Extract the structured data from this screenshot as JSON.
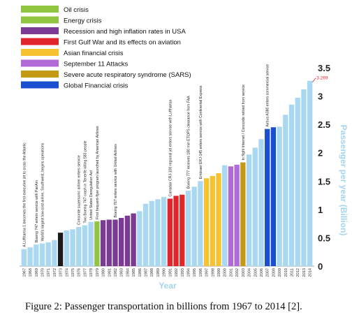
{
  "caption": "Figure 2: Passenger transportation in billions from 1967 to 2014 [2].",
  "chart_data": {
    "type": "bar",
    "xlabel": "Year",
    "ylabel": "Passenger per year (Billion)",
    "ylim": [
      0,
      3.5
    ],
    "yticks": [
      "0",
      "0.5",
      "1",
      "1.5",
      "2",
      "2.5",
      "3",
      "3.5"
    ],
    "grid": false,
    "legend_position": "top-left",
    "default_color": "#a9d8f2",
    "legend": [
      {
        "label": "Oil crisis",
        "color": "#8fc640"
      },
      {
        "label": "Energy crisis",
        "color": "#8fc640"
      },
      {
        "label": "Recession and high inflation rates in USA",
        "color": "#7b3a93"
      },
      {
        "label": "First Gulf War and its effects on aviation",
        "color": "#e0262a"
      },
      {
        "label": "Asian financial crisis",
        "color": "#f7c230"
      },
      {
        "label": "September 11 Attacks",
        "color": "#b36ad9"
      },
      {
        "label": "Severe acute respiratory syndrome (SARS)",
        "color": "#c49a14"
      },
      {
        "label": "Global Financial crisis",
        "color": "#1a4fd0"
      }
    ],
    "categories": [
      "1967",
      "1968",
      "1969",
      "1970",
      "1971",
      "1972",
      "1973",
      "1974",
      "1975",
      "1976",
      "1977",
      "1978",
      "1979",
      "1980",
      "1981",
      "1982",
      "1983",
      "1984",
      "1985",
      "1986",
      "1987",
      "1988",
      "1989",
      "1990",
      "1991",
      "1992",
      "1993",
      "1994",
      "1995",
      "1996",
      "1997",
      "1998",
      "1999",
      "2000",
      "2001",
      "2002",
      "2003",
      "2004",
      "2005",
      "2006",
      "2007",
      "2008",
      "2009",
      "2010",
      "2011",
      "2012",
      "2013",
      "2014"
    ],
    "values": [
      0.3,
      0.33,
      0.38,
      0.4,
      0.42,
      0.46,
      0.59,
      0.63,
      0.65,
      0.69,
      0.72,
      0.78,
      0.79,
      0.81,
      0.82,
      0.82,
      0.85,
      0.89,
      0.93,
      0.97,
      1.1,
      1.15,
      1.18,
      1.22,
      1.19,
      1.24,
      1.26,
      1.33,
      1.4,
      1.5,
      1.55,
      1.59,
      1.64,
      1.78,
      1.76,
      1.79,
      1.83,
      1.97,
      2.09,
      2.24,
      2.42,
      2.45,
      2.46,
      2.67,
      2.85,
      2.97,
      3.12,
      3.27
    ],
    "bar_colors": [
      "#a9d8f2",
      "#a9d8f2",
      "#a9d8f2",
      "#a9d8f2",
      "#a9d8f2",
      "#a9d8f2",
      "#1a1a1a",
      "#a9d8f2",
      "#a9d8f2",
      "#a9d8f2",
      "#a9d8f2",
      "#a9d8f2",
      "#8fc640",
      "#7b3a93",
      "#7b3a93",
      "#7b3a93",
      "#7b3a93",
      "#7b3a93",
      "#7b3a93",
      "#a9d8f2",
      "#a9d8f2",
      "#a9d8f2",
      "#a9d8f2",
      "#a9d8f2",
      "#e0262a",
      "#e0262a",
      "#e0262a",
      "#a9d8f2",
      "#a9d8f2",
      "#a9d8f2",
      "#f7c230",
      "#f7c230",
      "#f7c230",
      "#a9d8f2",
      "#b36ad9",
      "#b36ad9",
      "#c49a14",
      "#a9d8f2",
      "#a9d8f2",
      "#a9d8f2",
      "#1a4fd0",
      "#1a4fd0",
      "#a9d8f2",
      "#a9d8f2",
      "#a9d8f2",
      "#a9d8f2",
      "#a9d8f2",
      "#a9d8f2"
    ],
    "value_label": {
      "category": "2014",
      "text": "3.269",
      "color": "#e0262a"
    },
    "annotations": [
      {
        "category": "1967",
        "text": "A Lufthansa 1 becomes the first executive jet to cross the Atlantic"
      },
      {
        "category": "1969",
        "text": "Boeing 747 enters service with PanAm"
      },
      {
        "category": "1970",
        "text": "World's largest low-cost airline, Southwest, begins operations"
      },
      {
        "category": "1976",
        "text": "Concorde supersonic airliner enters service"
      },
      {
        "category": "1977",
        "text": "Two Boeing 747 crash in Tenerife killing 583 people"
      },
      {
        "category": "1978",
        "text": "United States Deregulation Act"
      },
      {
        "category": "1979",
        "text": "First frequent-flyer program launched by American Airlines"
      },
      {
        "category": "1982",
        "text": "Boeing 767 enters service with United Airlines"
      },
      {
        "category": "1991",
        "text": "Canadair CRJ-100 regional jet enters service with Lufthansa"
      },
      {
        "category": "1994",
        "text": "Boeing 777 receives 180 min ETOPS clearance from FAA"
      },
      {
        "category": "1996",
        "text": "Embraer ERJ-145 enters service with Continental Express"
      },
      {
        "category": "2003",
        "text": "In flight Internet / Concorde retired from service"
      },
      {
        "category": "2007",
        "text": "Airbus A380 enters commercial service"
      }
    ]
  }
}
